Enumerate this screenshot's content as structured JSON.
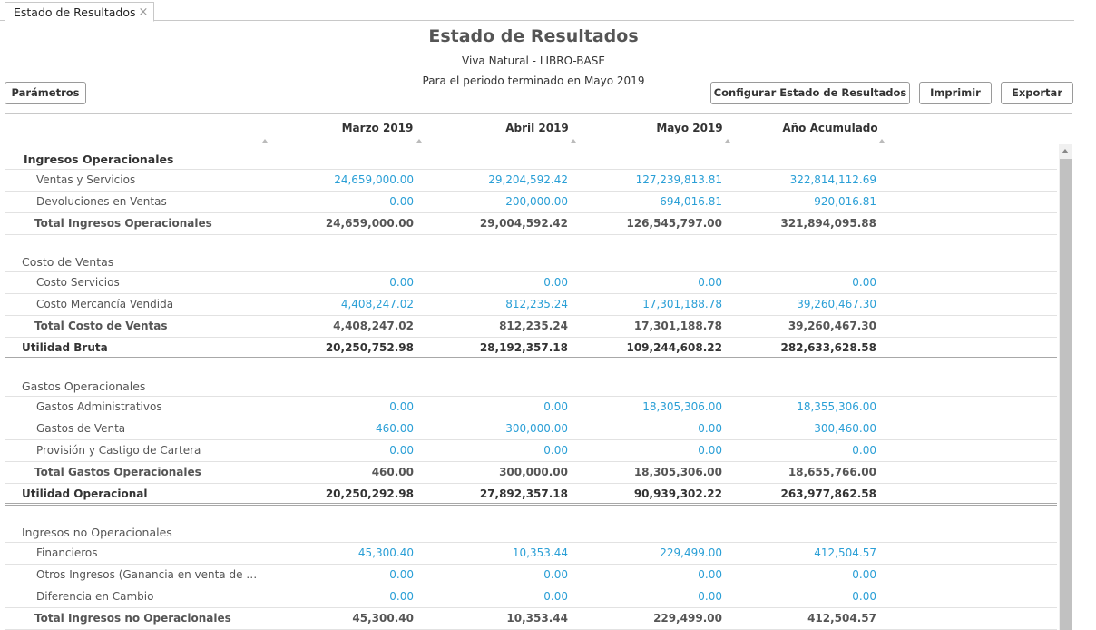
{
  "tab": {
    "label": "Estado de Resultados",
    "close": "×"
  },
  "header": {
    "title": "Estado de Resultados",
    "company": "Viva Natural - LIBRO-BASE",
    "period": "Para el periodo terminado en Mayo 2019"
  },
  "buttons": {
    "params": "Parámetros",
    "config": "Configurar Estado de Resultados",
    "print": "Imprimir",
    "export": "Exportar"
  },
  "columns": [
    "Marzo 2019",
    "Abril 2019",
    "Mayo 2019",
    "Año Acumulado"
  ],
  "rows": [
    {
      "type": "section",
      "bold": true,
      "label": "Ingresos Operacionales"
    },
    {
      "type": "item",
      "label": "Ventas y Servicios",
      "values": [
        "24,659,000.00",
        "29,204,592.42",
        "127,239,813.81",
        "322,814,112.69"
      ]
    },
    {
      "type": "item",
      "label": "Devoluciones en Ventas",
      "values": [
        "0.00",
        "-200,000.00",
        "-694,016.81",
        "-920,016.81"
      ]
    },
    {
      "type": "total",
      "label": "Total Ingresos Operacionales",
      "values": [
        "24,659,000.00",
        "29,004,592.42",
        "126,545,797.00",
        "321,894,095.88"
      ]
    },
    {
      "type": "spacer"
    },
    {
      "type": "section",
      "label": "Costo de Ventas"
    },
    {
      "type": "item",
      "label": "Costo Servicios",
      "values": [
        "0.00",
        "0.00",
        "0.00",
        "0.00"
      ]
    },
    {
      "type": "item",
      "label": "Costo Mercancía Vendida",
      "values": [
        "4,408,247.02",
        "812,235.24",
        "17,301,188.78",
        "39,260,467.30"
      ]
    },
    {
      "type": "total",
      "label": "Total Costo de Ventas",
      "values": [
        "4,408,247.02",
        "812,235.24",
        "17,301,188.78",
        "39,260,467.30"
      ]
    },
    {
      "type": "grand",
      "label": "Utilidad Bruta",
      "values": [
        "20,250,752.98",
        "28,192,357.18",
        "109,244,608.22",
        "282,633,628.58"
      ]
    },
    {
      "type": "spacer"
    },
    {
      "type": "section",
      "label": "Gastos Operacionales"
    },
    {
      "type": "item",
      "label": "Gastos Administrativos",
      "values": [
        "0.00",
        "0.00",
        "18,305,306.00",
        "18,355,306.00"
      ]
    },
    {
      "type": "item",
      "label": "Gastos de Venta",
      "values": [
        "460.00",
        "300,000.00",
        "0.00",
        "300,460.00"
      ]
    },
    {
      "type": "item",
      "label": "Provisión y Castigo de Cartera",
      "values": [
        "0.00",
        "0.00",
        "0.00",
        "0.00"
      ]
    },
    {
      "type": "total",
      "label": "Total Gastos Operacionales",
      "values": [
        "460.00",
        "300,000.00",
        "18,305,306.00",
        "18,655,766.00"
      ]
    },
    {
      "type": "grand",
      "label": "Utilidad Operacional",
      "values": [
        "20,250,292.98",
        "27,892,357.18",
        "90,939,302.22",
        "263,977,862.58"
      ]
    },
    {
      "type": "spacer"
    },
    {
      "type": "section",
      "label": "Ingresos no Operacionales"
    },
    {
      "type": "item",
      "label": "Financieros",
      "values": [
        "45,300.40",
        "10,353.44",
        "229,499.00",
        "412,504.57"
      ]
    },
    {
      "type": "item",
      "label": "Otros Ingresos (Ganancia en venta de activ...",
      "values": [
        "0.00",
        "0.00",
        "0.00",
        "0.00"
      ]
    },
    {
      "type": "item",
      "label": "Diferencia en Cambio",
      "values": [
        "0.00",
        "0.00",
        "0.00",
        "0.00"
      ]
    },
    {
      "type": "total",
      "label": "Total Ingresos no Operacionales",
      "values": [
        "45,300.40",
        "10,353.44",
        "229,499.00",
        "412,504.57"
      ]
    }
  ]
}
